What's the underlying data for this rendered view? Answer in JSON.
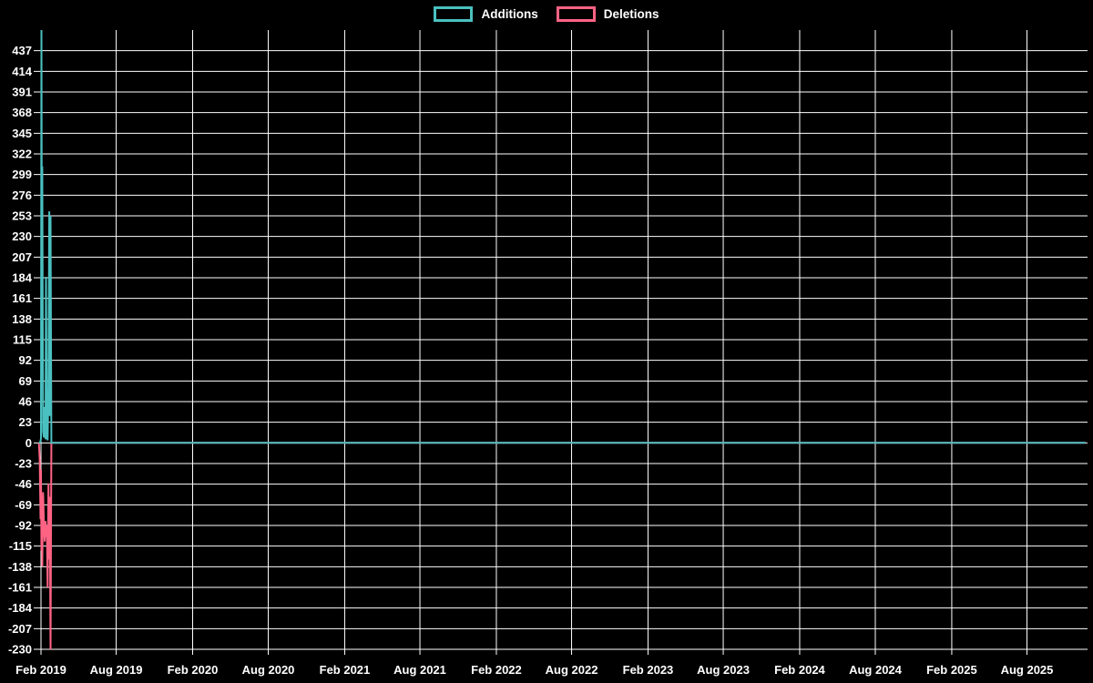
{
  "legend": {
    "items": [
      {
        "label": "Additions",
        "color": "#4bc0c0"
      },
      {
        "label": "Deletions",
        "color": "#ff6384"
      }
    ]
  },
  "chart_data": {
    "type": "line",
    "title": "",
    "background": "#000000",
    "grid": true,
    "legend_position": "top",
    "x_axis": {
      "type": "time",
      "ticks": [
        {
          "date": "2019-02-01",
          "label": "Feb 2019"
        },
        {
          "date": "2019-08-01",
          "label": "Aug 2019"
        },
        {
          "date": "2020-02-01",
          "label": "Feb 2020"
        },
        {
          "date": "2020-08-01",
          "label": "Aug 2020"
        },
        {
          "date": "2021-02-01",
          "label": "Feb 2021"
        },
        {
          "date": "2021-08-01",
          "label": "Aug 2021"
        },
        {
          "date": "2022-02-01",
          "label": "Feb 2022"
        },
        {
          "date": "2022-08-01",
          "label": "Aug 2022"
        },
        {
          "date": "2023-02-01",
          "label": "Feb 2023"
        },
        {
          "date": "2023-08-01",
          "label": "Aug 2023"
        },
        {
          "date": "2024-02-01",
          "label": "Feb 2024"
        },
        {
          "date": "2024-08-01",
          "label": "Aug 2024"
        },
        {
          "date": "2025-02-01",
          "label": "Feb 2025"
        },
        {
          "date": "2025-08-01",
          "label": "Aug 2025"
        }
      ],
      "domain_end": "2025-12-20"
    },
    "y_axis": {
      "min": -230,
      "max": 460,
      "tick_step": 23,
      "labeled_tick_min": -230,
      "labeled_tick_max": 437,
      "tick_labels": [
        437,
        414,
        391,
        368,
        345,
        322,
        299,
        276,
        253,
        230,
        207,
        184,
        161,
        138,
        115,
        92,
        69,
        46,
        23,
        0,
        -23,
        -46,
        -69,
        -92,
        -115,
        -138,
        -161,
        -184,
        -207,
        -230
      ]
    },
    "series": [
      {
        "name": "Additions",
        "color": "#4bc0c0",
        "points": [
          [
            "2019-01-27",
            0
          ],
          [
            "2019-01-29",
            0
          ],
          [
            "2019-01-31",
            2
          ],
          [
            "2019-02-01",
            5
          ],
          [
            "2019-02-02",
            460
          ],
          [
            "2019-02-03",
            210
          ],
          [
            "2019-02-04",
            308
          ],
          [
            "2019-02-06",
            13
          ],
          [
            "2019-02-08",
            6
          ],
          [
            "2019-02-10",
            40
          ],
          [
            "2019-02-12",
            4
          ],
          [
            "2019-02-13",
            185
          ],
          [
            "2019-02-15",
            8
          ],
          [
            "2019-02-17",
            3
          ],
          [
            "2019-02-19",
            60
          ],
          [
            "2019-02-21",
            258
          ],
          [
            "2019-02-22",
            30
          ],
          [
            "2019-02-24",
            253
          ],
          [
            "2019-02-26",
            0
          ],
          [
            "2025-12-20",
            0
          ]
        ]
      },
      {
        "name": "Deletions",
        "color": "#ff6384",
        "points": [
          [
            "2019-01-27",
            0
          ],
          [
            "2019-01-29",
            -18
          ],
          [
            "2019-01-31",
            -85
          ],
          [
            "2019-02-01",
            -30
          ],
          [
            "2019-02-02",
            -120
          ],
          [
            "2019-02-03",
            -60
          ],
          [
            "2019-02-04",
            -138
          ],
          [
            "2019-02-06",
            -55
          ],
          [
            "2019-02-08",
            -90
          ],
          [
            "2019-02-10",
            -110
          ],
          [
            "2019-02-12",
            -87
          ],
          [
            "2019-02-13",
            -105
          ],
          [
            "2019-02-15",
            -92
          ],
          [
            "2019-02-17",
            -161
          ],
          [
            "2019-02-19",
            -45
          ],
          [
            "2019-02-21",
            -130
          ],
          [
            "2019-02-22",
            -60
          ],
          [
            "2019-02-24",
            -230
          ],
          [
            "2019-02-26",
            0
          ],
          [
            "2025-12-20",
            0
          ]
        ]
      }
    ]
  }
}
